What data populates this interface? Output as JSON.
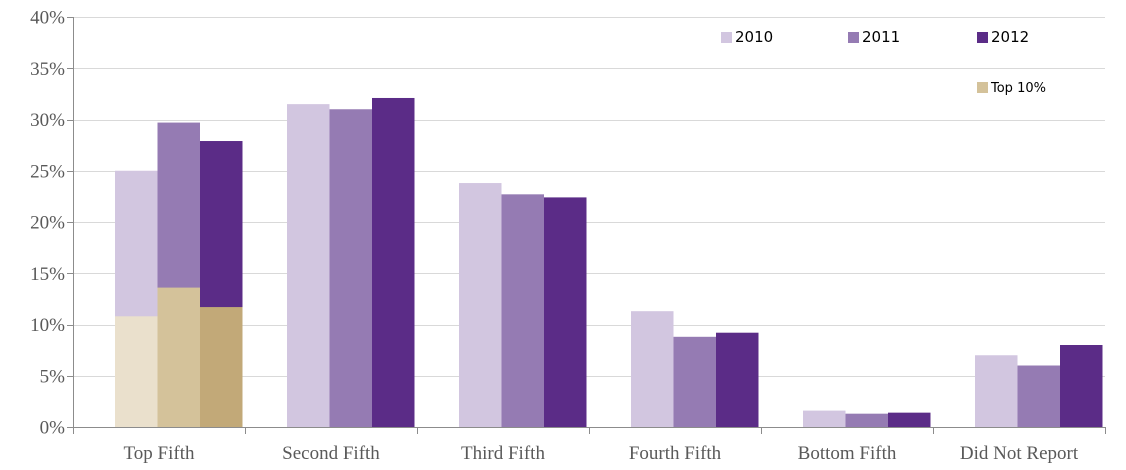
{
  "chart_data": {
    "type": "bar",
    "categories": [
      "Top Fifth",
      "Second Fifth",
      "Third Fifth",
      "Fourth Fifth",
      "Bottom Fifth",
      "Did Not Report"
    ],
    "series": [
      {
        "name": "2010",
        "color": "#d2c6e0",
        "values": [
          25.0,
          31.5,
          23.8,
          11.3,
          1.6,
          7.0
        ]
      },
      {
        "name": "2011",
        "color": "#957bb3",
        "values": [
          29.7,
          31.0,
          22.7,
          8.8,
          1.3,
          6.0
        ]
      },
      {
        "name": "2012",
        "color": "#5b2c87",
        "values": [
          27.9,
          32.1,
          22.4,
          9.2,
          1.4,
          8.0
        ]
      }
    ],
    "overlay": {
      "name": "Top 10%",
      "category": "Top Fifth",
      "values": [
        10.8,
        13.6,
        11.7
      ],
      "colors": [
        "#eae0cc",
        "#d4c29a",
        "#c2a978"
      ],
      "legend_color": "#d4c29a"
    },
    "yticks": [
      "0%",
      "5%",
      "10%",
      "15%",
      "20%",
      "25%",
      "30%",
      "35%",
      "40%"
    ],
    "ylim": [
      0,
      40
    ],
    "ytick_step": 5,
    "grid": true,
    "legend_position": "top-right",
    "title": "",
    "xlabel": "",
    "ylabel": ""
  }
}
